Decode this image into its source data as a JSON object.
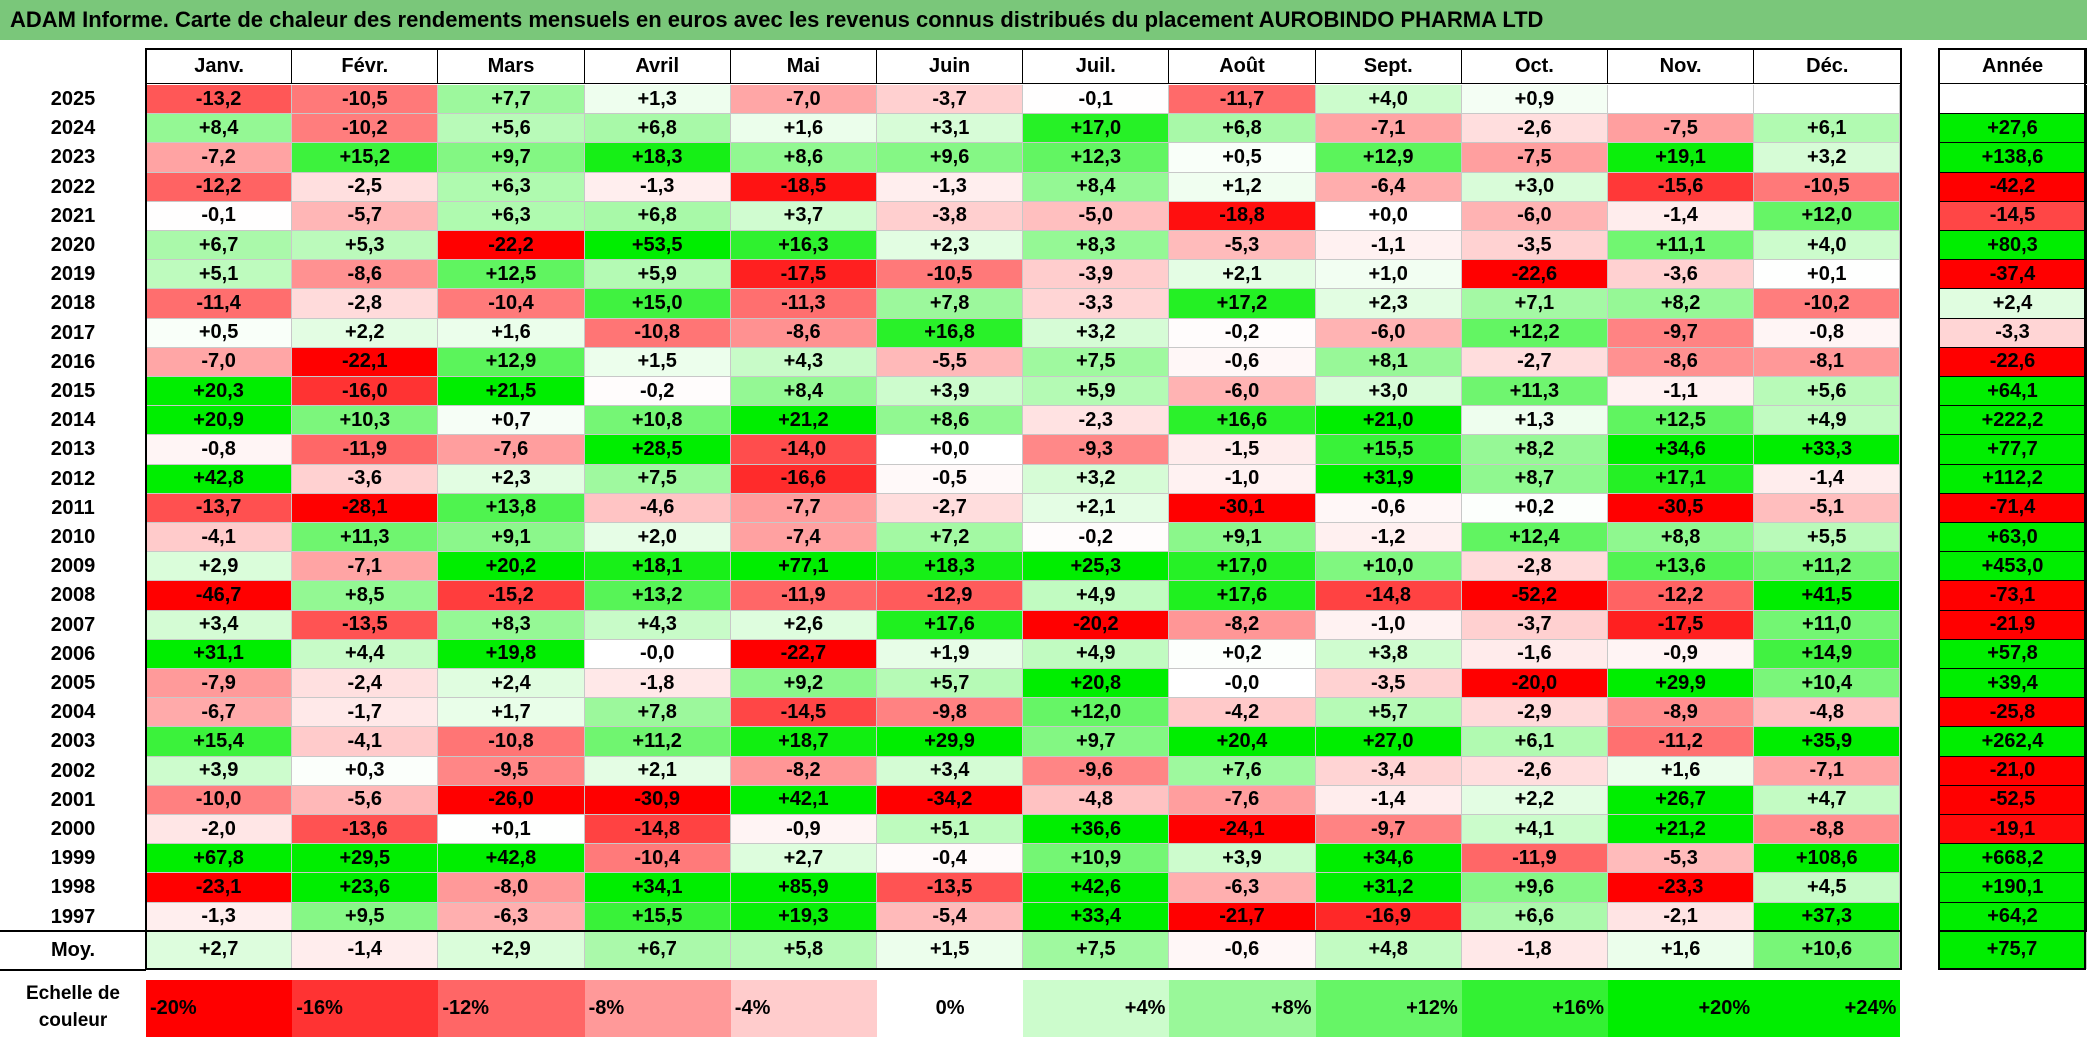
{
  "title": "ADAM Informe. Carte de chaleur des rendements mensuels en euros avec les revenus connus distribués du placement AUROBINDO PHARMA LTD",
  "chart_data": {
    "type": "heatmap",
    "title": "ADAM Informe. Carte de chaleur des rendements mensuels en euros avec les revenus connus distribués du placement AUROBINDO PHARMA LTD",
    "months": [
      "Janv.",
      "Févr.",
      "Mars",
      "Avril",
      "Mai",
      "Juin",
      "Juil.",
      "Août",
      "Sept.",
      "Oct.",
      "Nov.",
      "Déc."
    ],
    "annual_header": "Année",
    "rows": [
      {
        "year": "2025",
        "values": [
          "-13,2",
          "-10,5",
          "+7,7",
          "+1,3",
          "-7,0",
          "-3,7",
          "-0,1",
          "-11,7",
          "+4,0",
          "+0,9",
          "",
          ""
        ],
        "annual": ""
      },
      {
        "year": "2024",
        "values": [
          "+8,4",
          "-10,2",
          "+5,6",
          "+6,8",
          "+1,6",
          "+3,1",
          "+17,0",
          "+6,8",
          "-7,1",
          "-2,6",
          "-7,5",
          "+6,1"
        ],
        "annual": "+27,6"
      },
      {
        "year": "2023",
        "values": [
          "-7,2",
          "+15,2",
          "+9,7",
          "+18,3",
          "+8,6",
          "+9,6",
          "+12,3",
          "+0,5",
          "+12,9",
          "-7,5",
          "+19,1",
          "+3,2"
        ],
        "annual": "+138,6"
      },
      {
        "year": "2022",
        "values": [
          "-12,2",
          "-2,5",
          "+6,3",
          "-1,3",
          "-18,5",
          "-1,3",
          "+8,4",
          "+1,2",
          "-6,4",
          "+3,0",
          "-15,6",
          "-10,5"
        ],
        "annual": "-42,2"
      },
      {
        "year": "2021",
        "values": [
          "-0,1",
          "-5,7",
          "+6,3",
          "+6,8",
          "+3,7",
          "-3,8",
          "-5,0",
          "-18,8",
          "+0,0",
          "-6,0",
          "-1,4",
          "+12,0"
        ],
        "annual": "-14,5"
      },
      {
        "year": "2020",
        "values": [
          "+6,7",
          "+5,3",
          "-22,2",
          "+53,5",
          "+16,3",
          "+2,3",
          "+8,3",
          "-5,3",
          "-1,1",
          "-3,5",
          "+11,1",
          "+4,0"
        ],
        "annual": "+80,3"
      },
      {
        "year": "2019",
        "values": [
          "+5,1",
          "-8,6",
          "+12,5",
          "+5,9",
          "-17,5",
          "-10,5",
          "-3,9",
          "+2,1",
          "+1,0",
          "-22,6",
          "-3,6",
          "+0,1"
        ],
        "annual": "-37,4"
      },
      {
        "year": "2018",
        "values": [
          "-11,4",
          "-2,8",
          "-10,4",
          "+15,0",
          "-11,3",
          "+7,8",
          "-3,3",
          "+17,2",
          "+2,3",
          "+7,1",
          "+8,2",
          "-10,2"
        ],
        "annual": "+2,4"
      },
      {
        "year": "2017",
        "values": [
          "+0,5",
          "+2,2",
          "+1,6",
          "-10,8",
          "-8,6",
          "+16,8",
          "+3,2",
          "-0,2",
          "-6,0",
          "+12,2",
          "-9,7",
          "-0,8"
        ],
        "annual": "-3,3"
      },
      {
        "year": "2016",
        "values": [
          "-7,0",
          "-22,1",
          "+12,9",
          "+1,5",
          "+4,3",
          "-5,5",
          "+7,5",
          "-0,6",
          "+8,1",
          "-2,7",
          "-8,6",
          "-8,1"
        ],
        "annual": "-22,6"
      },
      {
        "year": "2015",
        "values": [
          "+20,3",
          "-16,0",
          "+21,5",
          "-0,2",
          "+8,4",
          "+3,9",
          "+5,9",
          "-6,0",
          "+3,0",
          "+11,3",
          "-1,1",
          "+5,6"
        ],
        "annual": "+64,1"
      },
      {
        "year": "2014",
        "values": [
          "+20,9",
          "+10,3",
          "+0,7",
          "+10,8",
          "+21,2",
          "+8,6",
          "-2,3",
          "+16,6",
          "+21,0",
          "+1,3",
          "+12,5",
          "+4,9"
        ],
        "annual": "+222,2"
      },
      {
        "year": "2013",
        "values": [
          "-0,8",
          "-11,9",
          "-7,6",
          "+28,5",
          "-14,0",
          "+0,0",
          "-9,3",
          "-1,5",
          "+15,5",
          "+8,2",
          "+34,6",
          "+33,3"
        ],
        "annual": "+77,7"
      },
      {
        "year": "2012",
        "values": [
          "+42,8",
          "-3,6",
          "+2,3",
          "+7,5",
          "-16,6",
          "-0,5",
          "+3,2",
          "-1,0",
          "+31,9",
          "+8,7",
          "+17,1",
          "-1,4"
        ],
        "annual": "+112,2"
      },
      {
        "year": "2011",
        "values": [
          "-13,7",
          "-28,1",
          "+13,8",
          "-4,6",
          "-7,7",
          "-2,7",
          "+2,1",
          "-30,1",
          "-0,6",
          "+0,2",
          "-30,5",
          "-5,1"
        ],
        "annual": "-71,4"
      },
      {
        "year": "2010",
        "values": [
          "-4,1",
          "+11,3",
          "+9,1",
          "+2,0",
          "-7,4",
          "+7,2",
          "-0,2",
          "+9,1",
          "-1,2",
          "+12,4",
          "+8,8",
          "+5,5"
        ],
        "annual": "+63,0"
      },
      {
        "year": "2009",
        "values": [
          "+2,9",
          "-7,1",
          "+20,2",
          "+18,1",
          "+77,1",
          "+18,3",
          "+25,3",
          "+17,0",
          "+10,0",
          "-2,8",
          "+13,6",
          "+11,2"
        ],
        "annual": "+453,0"
      },
      {
        "year": "2008",
        "values": [
          "-46,7",
          "+8,5",
          "-15,2",
          "+13,2",
          "-11,9",
          "-12,9",
          "+4,9",
          "+17,6",
          "-14,8",
          "-52,2",
          "-12,2",
          "+41,5"
        ],
        "annual": "-73,1"
      },
      {
        "year": "2007",
        "values": [
          "+3,4",
          "-13,5",
          "+8,3",
          "+4,3",
          "+2,6",
          "+17,6",
          "-20,2",
          "-8,2",
          "-1,0",
          "-3,7",
          "-17,5",
          "+11,0"
        ],
        "annual": "-21,9"
      },
      {
        "year": "2006",
        "values": [
          "+31,1",
          "+4,4",
          "+19,8",
          "-0,0",
          "-22,7",
          "+1,9",
          "+4,9",
          "+0,2",
          "+3,8",
          "-1,6",
          "-0,9",
          "+14,9"
        ],
        "annual": "+57,8"
      },
      {
        "year": "2005",
        "values": [
          "-7,9",
          "-2,4",
          "+2,4",
          "-1,8",
          "+9,2",
          "+5,7",
          "+20,8",
          "-0,0",
          "-3,5",
          "-20,0",
          "+29,9",
          "+10,4"
        ],
        "annual": "+39,4"
      },
      {
        "year": "2004",
        "values": [
          "-6,7",
          "-1,7",
          "+1,7",
          "+7,8",
          "-14,5",
          "-9,8",
          "+12,0",
          "-4,2",
          "+5,7",
          "-2,9",
          "-8,9",
          "-4,8"
        ],
        "annual": "-25,8"
      },
      {
        "year": "2003",
        "values": [
          "+15,4",
          "-4,1",
          "-10,8",
          "+11,2",
          "+18,7",
          "+29,9",
          "+9,7",
          "+20,4",
          "+27,0",
          "+6,1",
          "-11,2",
          "+35,9"
        ],
        "annual": "+262,4"
      },
      {
        "year": "2002",
        "values": [
          "+3,9",
          "+0,3",
          "-9,5",
          "+2,1",
          "-8,2",
          "+3,4",
          "-9,6",
          "+7,6",
          "-3,4",
          "-2,6",
          "+1,6",
          "-7,1"
        ],
        "annual": "-21,0"
      },
      {
        "year": "2001",
        "values": [
          "-10,0",
          "-5,6",
          "-26,0",
          "-30,9",
          "+42,1",
          "-34,2",
          "-4,8",
          "-7,6",
          "-1,4",
          "+2,2",
          "+26,7",
          "+4,7"
        ],
        "annual": "-52,5"
      },
      {
        "year": "2000",
        "values": [
          "-2,0",
          "-13,6",
          "+0,1",
          "-14,8",
          "-0,9",
          "+5,1",
          "+36,6",
          "-24,1",
          "-9,7",
          "+4,1",
          "+21,2",
          "-8,8"
        ],
        "annual": "-19,1"
      },
      {
        "year": "1999",
        "values": [
          "+67,8",
          "+29,5",
          "+42,8",
          "-10,4",
          "+2,7",
          "-0,4",
          "+10,9",
          "+3,9",
          "+34,6",
          "-11,9",
          "-5,3",
          "+108,6"
        ],
        "annual": "+668,2"
      },
      {
        "year": "1998",
        "values": [
          "-23,1",
          "+23,6",
          "-8,0",
          "+34,1",
          "+85,9",
          "-13,5",
          "+42,6",
          "-6,3",
          "+31,2",
          "+9,6",
          "-23,3",
          "+4,5"
        ],
        "annual": "+190,1"
      },
      {
        "year": "1997",
        "values": [
          "-1,3",
          "+9,5",
          "-6,3",
          "+15,5",
          "+19,3",
          "-5,4",
          "+33,4",
          "-21,7",
          "-16,9",
          "+6,6",
          "-2,1",
          "+37,3"
        ],
        "annual": "+64,2"
      }
    ],
    "average": {
      "label": "Moy.",
      "values": [
        "+2,7",
        "-1,4",
        "+2,9",
        "+6,7",
        "+5,8",
        "+1,5",
        "+7,5",
        "-0,6",
        "+4,8",
        "-1,8",
        "+1,6",
        "+10,6"
      ],
      "annual": "+75,7"
    },
    "scale": {
      "label": "Echelle de couleur",
      "labels": [
        "-20%",
        "-16%",
        "-12%",
        "-8%",
        "-4%",
        "0%",
        "+4%",
        "+8%",
        "+12%",
        "+16%",
        "+20%",
        "+24%"
      ],
      "values": [
        -20,
        -16,
        -12,
        -8,
        -4,
        0,
        4,
        8,
        12,
        16,
        20,
        24
      ]
    },
    "colors": {
      "negative_max": "#ff0000",
      "neutral": "#ffffff",
      "positive_max": "#00ee00",
      "title_bg": "#7ac77a"
    }
  }
}
